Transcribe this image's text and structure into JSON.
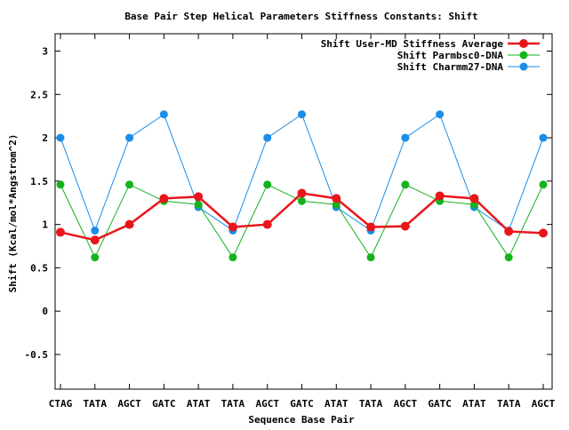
{
  "chart_data": {
    "type": "line",
    "title": "Base Pair Step Helical Parameters Stiffness Constants: Shift",
    "xlabel": "Sequence Base Pair",
    "ylabel": "Shift (Kcal/mol*Angstrom^2)",
    "categories": [
      "CTAG",
      "TATA",
      "AGCT",
      "GATC",
      "ATAT",
      "TATA",
      "AGCT",
      "GATC",
      "ATAT",
      "TATA",
      "AGCT",
      "GATC",
      "ATAT",
      "TATA",
      "AGCT"
    ],
    "ylim": [
      -0.9,
      3.2
    ],
    "yticks": [
      -0.5,
      0,
      0.5,
      1,
      1.5,
      2,
      2.5,
      3
    ],
    "ytick_labels": [
      "-0.5",
      "0",
      "0.5",
      "1",
      "1.5",
      "2",
      "2.5",
      "3"
    ],
    "grid": false,
    "legend_position": "top-right",
    "series": [
      {
        "name": "Shift User-MD Stiffness Average",
        "color": "#e8161b",
        "values": [
          0.91,
          0.82,
          1.0,
          1.3,
          1.32,
          0.97,
          1.0,
          1.36,
          1.3,
          0.97,
          0.98,
          1.33,
          1.3,
          0.92,
          0.9
        ]
      },
      {
        "name": "Shift Parmbsc0-DNA",
        "color": "#15b21e",
        "values": [
          1.46,
          0.62,
          1.46,
          1.27,
          1.23,
          0.62,
          1.46,
          1.27,
          1.23,
          0.62,
          1.46,
          1.27,
          1.23,
          0.62,
          1.46
        ]
      },
      {
        "name": "Shift Charmm27-DNA",
        "color": "#1a8de8",
        "values": [
          2.0,
          0.93,
          2.0,
          2.27,
          1.2,
          0.93,
          2.0,
          2.27,
          1.2,
          0.93,
          2.0,
          2.27,
          1.2,
          0.93,
          2.0
        ]
      }
    ]
  }
}
